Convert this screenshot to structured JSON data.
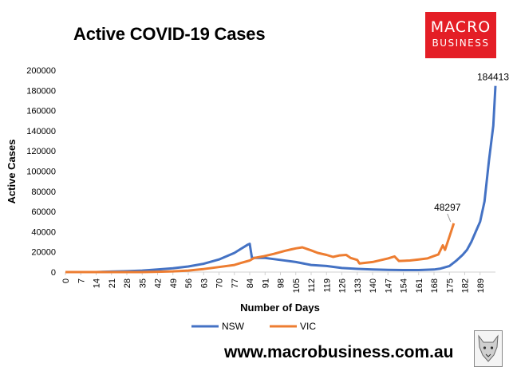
{
  "colors": {
    "nsw": "#4472c4",
    "vic": "#ed7d31",
    "logo": "#e41e26"
  },
  "branding": {
    "logo_line1": "MACRO",
    "logo_line2": "BUSINESS",
    "url": "www.macrobusiness.com.au",
    "watermark_icon": "wolf-head-icon"
  },
  "chart_data": {
    "type": "line",
    "title": "Active COVID-19 Cases",
    "xlabel": "Number of Days",
    "ylabel": "Active Cases",
    "xlim": [
      0,
      196
    ],
    "ylim": [
      0,
      200000
    ],
    "grid": false,
    "legend": "bottom",
    "y_ticks": [
      "0",
      "20000",
      "40000",
      "60000",
      "80000",
      "100000",
      "120000",
      "140000",
      "160000",
      "180000",
      "200000"
    ],
    "x_ticks": [
      "0",
      "7",
      "14",
      "21",
      "28",
      "35",
      "42",
      "49",
      "56",
      "63",
      "70",
      "77",
      "84",
      "91",
      "98",
      "105",
      "112",
      "119",
      "126",
      "133",
      "140",
      "147",
      "154",
      "161",
      "168",
      "175",
      "182",
      "189"
    ],
    "series": [
      {
        "name": "NSW",
        "end_label": "184413",
        "points": [
          [
            0,
            0
          ],
          [
            14,
            0
          ],
          [
            21,
            500
          ],
          [
            28,
            900
          ],
          [
            35,
            1500
          ],
          [
            42,
            2500
          ],
          [
            49,
            3800
          ],
          [
            56,
            5500
          ],
          [
            63,
            8200
          ],
          [
            70,
            12500
          ],
          [
            77,
            19000
          ],
          [
            80,
            23000
          ],
          [
            83,
            27000
          ],
          [
            84,
            28000
          ],
          [
            85,
            14000
          ],
          [
            91,
            14000
          ],
          [
            98,
            12000
          ],
          [
            105,
            10000
          ],
          [
            112,
            7000
          ],
          [
            119,
            6000
          ],
          [
            126,
            4000
          ],
          [
            133,
            3200
          ],
          [
            140,
            2600
          ],
          [
            147,
            2200
          ],
          [
            154,
            2000
          ],
          [
            161,
            2000
          ],
          [
            168,
            2500
          ],
          [
            171,
            3500
          ],
          [
            175,
            6000
          ],
          [
            178,
            11000
          ],
          [
            181,
            17000
          ],
          [
            183,
            22000
          ],
          [
            185,
            30000
          ],
          [
            187,
            40000
          ],
          [
            189,
            50000
          ],
          [
            191,
            70000
          ],
          [
            193,
            110000
          ],
          [
            195,
            145000
          ],
          [
            196,
            184413
          ]
        ]
      },
      {
        "name": "VIC",
        "end_label": "48297",
        "points": [
          [
            0,
            0
          ],
          [
            35,
            0
          ],
          [
            42,
            300
          ],
          [
            49,
            700
          ],
          [
            56,
            1500
          ],
          [
            63,
            3000
          ],
          [
            70,
            5000
          ],
          [
            77,
            7000
          ],
          [
            80,
            9000
          ],
          [
            84,
            11500
          ],
          [
            86,
            14000
          ],
          [
            90,
            15500
          ],
          [
            95,
            18000
          ],
          [
            100,
            21000
          ],
          [
            103,
            22500
          ],
          [
            105,
            23500
          ],
          [
            108,
            24500
          ],
          [
            110,
            23000
          ],
          [
            112,
            21500
          ],
          [
            115,
            19000
          ],
          [
            119,
            17000
          ],
          [
            122,
            15000
          ],
          [
            125,
            16500
          ],
          [
            128,
            17000
          ],
          [
            130,
            14000
          ],
          [
            133,
            12000
          ],
          [
            134,
            8500
          ],
          [
            140,
            10000
          ],
          [
            147,
            13500
          ],
          [
            150,
            15500
          ],
          [
            152,
            11000
          ],
          [
            157,
            11500
          ],
          [
            161,
            12500
          ],
          [
            165,
            13500
          ],
          [
            168,
            16000
          ],
          [
            170,
            17500
          ],
          [
            172,
            26500
          ],
          [
            173,
            22000
          ],
          [
            175,
            35000
          ],
          [
            177,
            48297
          ]
        ]
      }
    ]
  }
}
